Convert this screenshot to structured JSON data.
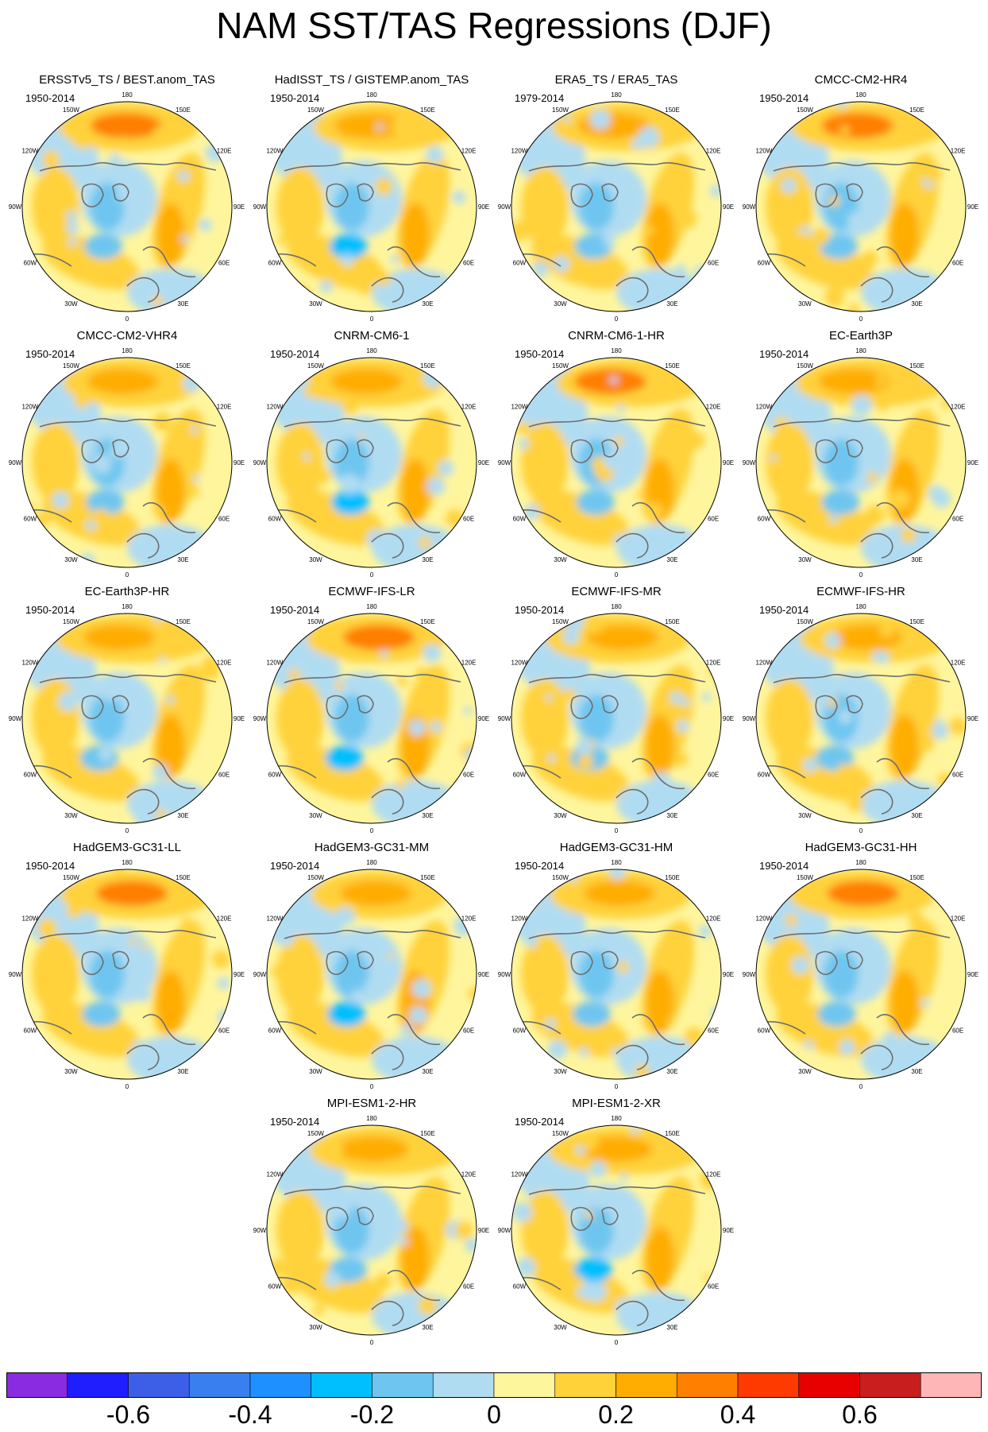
{
  "figure": {
    "title": "NAM SST/TAS Regressions (DJF)",
    "longitude_labels": [
      "180",
      "150E",
      "120E",
      "90E",
      "60E",
      "30E",
      "0",
      "30W",
      "60W",
      "90W",
      "120W",
      "150W"
    ]
  },
  "panels": [
    {
      "title": "ERSSTv5_TS / BEST.anom_TAS",
      "period": "1950-2014"
    },
    {
      "title": "HadISST_TS / GISTEMP.anom_TAS",
      "period": "1950-2014"
    },
    {
      "title": "ERA5_TS / ERA5_TAS",
      "period": "1979-2014"
    },
    {
      "title": "CMCC-CM2-HR4",
      "period": "1950-2014"
    },
    {
      "title": "CMCC-CM2-VHR4",
      "period": "1950-2014"
    },
    {
      "title": "CNRM-CM6-1",
      "period": "1950-2014"
    },
    {
      "title": "CNRM-CM6-1-HR",
      "period": "1950-2014"
    },
    {
      "title": "EC-Earth3P",
      "period": "1950-2014"
    },
    {
      "title": "EC-Earth3P-HR",
      "period": "1950-2014"
    },
    {
      "title": "ECMWF-IFS-LR",
      "period": "1950-2014"
    },
    {
      "title": "ECMWF-IFS-MR",
      "period": "1950-2014"
    },
    {
      "title": "ECMWF-IFS-HR",
      "period": "1950-2014"
    },
    {
      "title": "HadGEM3-GC31-LL",
      "period": "1950-2014"
    },
    {
      "title": "HadGEM3-GC31-MM",
      "period": "1950-2014"
    },
    {
      "title": "HadGEM3-GC31-HM",
      "period": "1950-2014"
    },
    {
      "title": "HadGEM3-GC31-HH",
      "period": "1950-2014"
    },
    {
      "title": "MPI-ESM1-2-HR",
      "period": "1950-2014"
    },
    {
      "title": "MPI-ESM1-2-XR",
      "period": "1950-2014"
    }
  ],
  "colorbar": {
    "colors": [
      "#8a2be2",
      "#1e1eff",
      "#3d5fe8",
      "#3a7ff0",
      "#1e90ff",
      "#00bfff",
      "#6ec6f0",
      "#b0dcf2",
      "#fff59d",
      "#ffd23a",
      "#ffad00",
      "#ff7f00",
      "#ff3a00",
      "#e60000",
      "#c81e1e",
      "#ffb6b6"
    ],
    "labels": [
      "-0.6",
      "-0.4",
      "-0.2",
      "0",
      "0.2",
      "0.4",
      "0.6"
    ]
  }
}
